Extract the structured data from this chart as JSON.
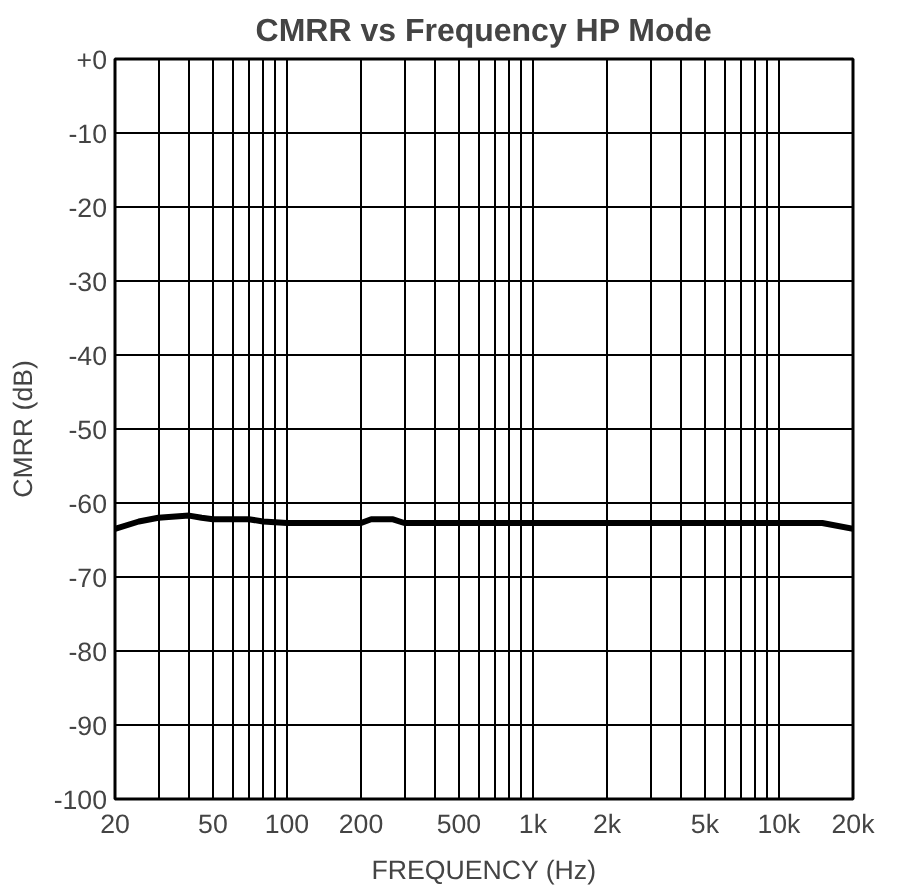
{
  "chart_data": {
    "type": "line",
    "title": "CMRR vs Frequency HP Mode",
    "xlabel": "FREQUENCY (Hz)",
    "ylabel": "CMRR (dB)",
    "log": "x",
    "grid": true,
    "marker": "none",
    "line_style": "solid",
    "x": [
      20,
      25,
      30,
      40,
      45,
      50,
      70,
      80,
      100,
      200,
      220,
      270,
      300,
      1000,
      15000,
      20000
    ],
    "series": [
      {
        "color": "#000000",
        "values": [
          -63.5,
          -62.5,
          -62,
          -61.7,
          -62,
          -62.2,
          -62.2,
          -62.5,
          -62.7,
          -62.7,
          -62.2,
          -62.2,
          -62.7,
          -62.7,
          -62.7,
          -63.5
        ]
      }
    ],
    "xlim": [
      20,
      20000
    ],
    "ylim": [
      -100,
      0
    ],
    "xticks": [
      20,
      {
        "value": 30,
        "label": null
      },
      {
        "value": 40,
        "label": null
      },
      50,
      {
        "value": 60,
        "label": null
      },
      {
        "value": 70,
        "label": null
      },
      {
        "value": 80,
        "label": null
      },
      {
        "value": 90,
        "label": null
      },
      100,
      200,
      {
        "value": 300,
        "label": null
      },
      {
        "value": 400,
        "label": null
      },
      500,
      {
        "value": 600,
        "label": null
      },
      {
        "value": 700,
        "label": null
      },
      {
        "value": 800,
        "label": null
      },
      {
        "value": 900,
        "label": null
      },
      {
        "value": 1000,
        "label": "1k"
      },
      {
        "value": 2000,
        "label": "2k"
      },
      {
        "value": 3000,
        "label": null
      },
      {
        "value": 4000,
        "label": null
      },
      {
        "value": 5000,
        "label": "5k"
      },
      {
        "value": 6000,
        "label": null
      },
      {
        "value": 7000,
        "label": null
      },
      {
        "value": 8000,
        "label": null
      },
      {
        "value": 9000,
        "label": null
      },
      {
        "value": 10000,
        "label": "10k"
      },
      {
        "value": 20000,
        "label": "20k"
      }
    ],
    "yticks": [
      -100,
      -90,
      -80,
      -70,
      -60,
      -50,
      -40,
      -30,
      -20,
      -10,
      {
        "value": 0,
        "label": "+0"
      }
    ]
  }
}
